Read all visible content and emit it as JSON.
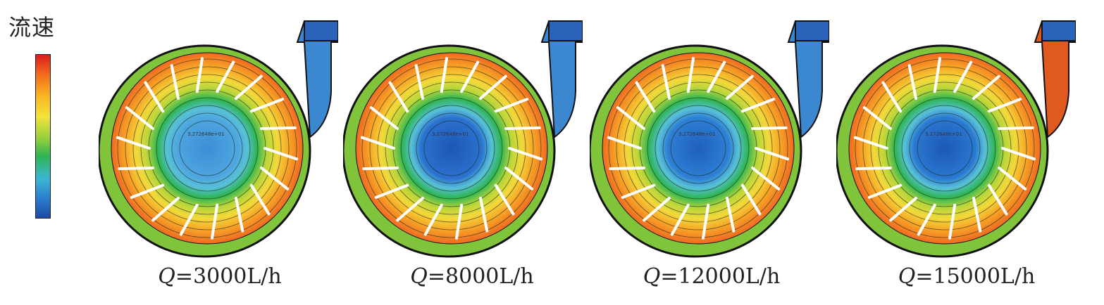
{
  "legend": {
    "title": "流速",
    "colors": [
      "#d81e1e",
      "#f36a1e",
      "#f9b521",
      "#f3e33a",
      "#8fce3b",
      "#2fb553",
      "#3bb6d3",
      "#2b7fd0",
      "#1d4aa5"
    ]
  },
  "panels": [
    {
      "q_symbol": "Q",
      "q_value": "=3000L/h",
      "core_color": "#4fa6df",
      "inner_color": "#3b8fd6",
      "core_label": "3.272648e+01"
    },
    {
      "q_symbol": "Q",
      "q_value": "=8000L/h",
      "core_color": "#2b72cf",
      "inner_color": "#1e56b3",
      "core_label": "3.272648e+01"
    },
    {
      "q_symbol": "Q",
      "q_value": "=12000L/h",
      "core_color": "#2e7fd4",
      "inner_color": "#1f5fbc",
      "core_label": "3.272648e+01"
    },
    {
      "q_symbol": "Q",
      "q_value": "=15000L/h",
      "core_color": "#2a78d1",
      "inner_color": "#1d58b6",
      "core_label": "3.272648e+01"
    }
  ]
}
